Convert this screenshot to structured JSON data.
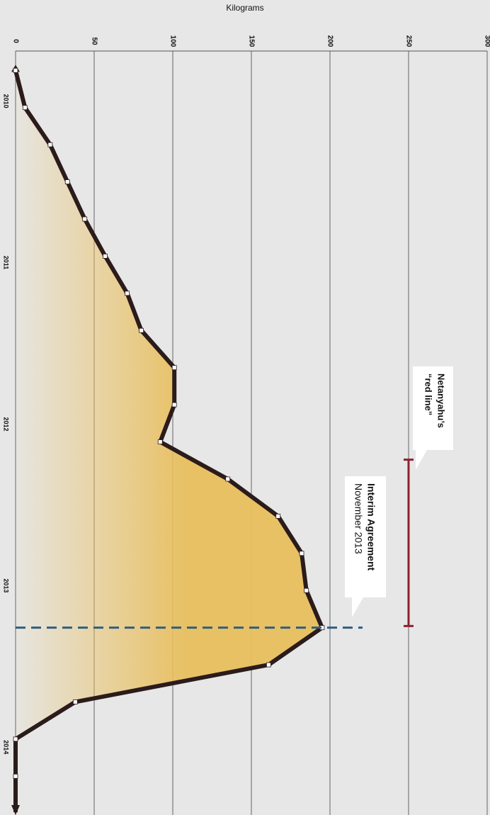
{
  "chart_data": {
    "type": "line",
    "value_axis_label": "Kilograms",
    "ylim": [
      0,
      300
    ],
    "yticks": [
      0,
      50,
      100,
      150,
      200,
      250,
      300
    ],
    "xlim": [
      2009.69,
      2014.42
    ],
    "xticks": [
      2010,
      2011,
      2012,
      2013,
      2014
    ],
    "grid": true,
    "color": "#2b1b1b",
    "fill_color": "#e8bf5e",
    "x": [
      2009.81,
      2010.04,
      2010.27,
      2010.5,
      2010.73,
      2010.96,
      2011.19,
      2011.42,
      2011.65,
      2011.88,
      2012.11,
      2012.34,
      2012.57,
      2012.8,
      2013.03,
      2013.26,
      2013.49,
      2013.72,
      2013.95,
      2014.18
    ],
    "values": [
      0,
      6,
      22,
      33,
      44,
      57,
      71,
      80,
      101,
      101,
      92,
      135,
      167,
      182,
      185,
      195,
      161,
      38,
      0,
      0
    ],
    "annotations": [
      {
        "text": [
          "Netanyahu’s",
          "“red line”"
        ],
        "value": 250,
        "x": [
          2012.22,
          2013.25
        ],
        "color": "#8b2331"
      },
      {
        "text": [
          "Interim Agreement",
          "November 2013"
        ],
        "x": 2013.26,
        "color": "#2f5f7f"
      }
    ]
  }
}
